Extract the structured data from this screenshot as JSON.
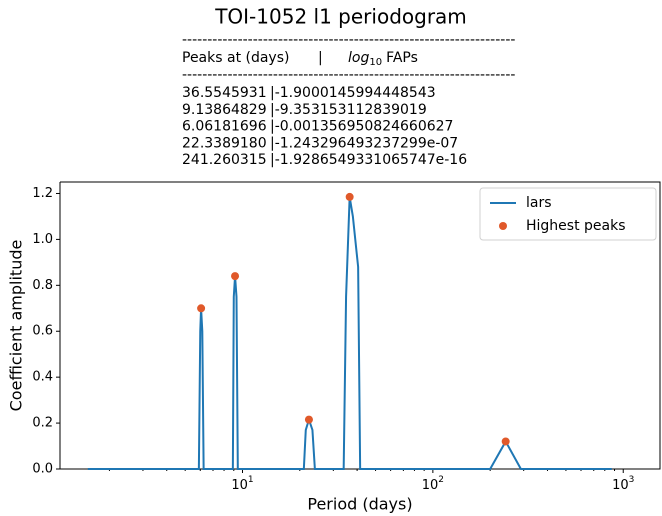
{
  "chart_data": {
    "type": "line",
    "title": "TOI-1052 l1 periodogram",
    "table": {
      "separator": "------------------------------------------------------------------",
      "header": {
        "period": "Peaks at (days)",
        "divider": "|",
        "log": "log",
        "sub": "10",
        "fap": "FAPs"
      },
      "rows": [
        [
          "36.5545931",
          "|-1.9000145994448543"
        ],
        [
          "9.13864829",
          "|-9.353153112839019"
        ],
        [
          "6.06181696",
          "|-0.001356950824660627"
        ],
        [
          "22.3389180",
          "|-1.243296493237299e-07"
        ],
        [
          "241.260315",
          "|-1.9286549331065747e-16"
        ]
      ]
    },
    "xlabel": "Period (days)",
    "ylabel": "Coefficient amplitude",
    "xscale": "log",
    "xlim": [
      1.1,
      1560
    ],
    "ylim": [
      0,
      1.25
    ],
    "xticks": [
      {
        "value": 10,
        "label": "10",
        "exponent": "1"
      },
      {
        "value": 100,
        "label": "10",
        "exponent": "2"
      },
      {
        "value": 1000,
        "label": "10",
        "exponent": "3"
      }
    ],
    "xminorticks": [
      2,
      3,
      4,
      5,
      6,
      7,
      8,
      9,
      20,
      30,
      40,
      50,
      60,
      70,
      80,
      90,
      200,
      300,
      400,
      500,
      600,
      700,
      800,
      900
    ],
    "yticks": [
      {
        "value": 0,
        "label": "0.0"
      },
      0.2,
      0.4,
      0.6,
      0.8,
      {
        "value": 1,
        "label": "1.0"
      },
      1.2
    ],
    "legend": "upper right",
    "series": [
      {
        "name": "lars",
        "type": "line",
        "color": "#1f77b4",
        "x": [
          1.54,
          5.9,
          6.0,
          6.06,
          6.15,
          6.25,
          8.9,
          9.0,
          9.14,
          9.3,
          9.45,
          21,
          21.5,
          22.34,
          23.3,
          24,
          34,
          35,
          36.55,
          38,
          40.5,
          41.5,
          200,
          241.26,
          290,
          870
        ],
        "values": [
          0,
          0,
          0.6,
          0.7,
          0.6,
          0,
          0,
          0.75,
          0.84,
          0.75,
          0,
          0,
          0.17,
          0.215,
          0.17,
          0,
          0,
          0.75,
          1.185,
          1.1,
          0.88,
          0,
          0,
          0.12,
          0,
          0
        ]
      },
      {
        "name": "Highest peaks",
        "type": "scatter",
        "color": "#e0592a",
        "x": [
          36.5545931,
          9.13864829,
          6.06181696,
          22.338918,
          241.260315
        ],
        "values": [
          1.185,
          0.84,
          0.7,
          0.215,
          0.12
        ]
      }
    ]
  }
}
